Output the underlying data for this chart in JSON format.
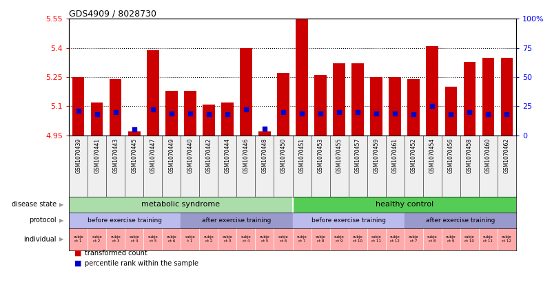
{
  "title": "GDS4909 / 8028730",
  "samples": [
    "GSM1070439",
    "GSM1070441",
    "GSM1070443",
    "GSM1070445",
    "GSM1070447",
    "GSM1070449",
    "GSM1070440",
    "GSM1070442",
    "GSM1070444",
    "GSM1070446",
    "GSM1070448",
    "GSM1070450",
    "GSM1070451",
    "GSM1070453",
    "GSM1070455",
    "GSM1070457",
    "GSM1070459",
    "GSM1070461",
    "GSM1070452",
    "GSM1070454",
    "GSM1070456",
    "GSM1070458",
    "GSM1070460",
    "GSM1070462"
  ],
  "transformed_count": [
    5.25,
    5.12,
    5.24,
    4.97,
    5.39,
    5.18,
    5.18,
    5.11,
    5.12,
    5.4,
    4.97,
    5.27,
    5.55,
    5.26,
    5.32,
    5.32,
    5.25,
    5.25,
    5.24,
    5.41,
    5.2,
    5.33,
    5.35,
    5.35
  ],
  "percentile_rank": [
    21,
    18,
    20,
    5,
    22,
    19,
    19,
    18,
    18,
    22,
    6,
    20,
    19,
    19,
    20,
    20,
    19,
    19,
    18,
    25,
    18,
    20,
    18,
    18
  ],
  "y_min": 4.95,
  "y_max": 5.55,
  "y_ticks": [
    4.95,
    5.1,
    5.25,
    5.4,
    5.55
  ],
  "y_tick_labels": [
    "4.95",
    "5.1",
    "5.25",
    "5.4",
    "5.55"
  ],
  "right_y_ticks": [
    0,
    25,
    50,
    75,
    100
  ],
  "right_y_labels": [
    "0",
    "25",
    "50",
    "75",
    "100%"
  ],
  "bar_color": "#cc0000",
  "dot_color": "#0000cc",
  "bar_width": 0.65,
  "disease_groups": [
    {
      "label": "metabolic syndrome",
      "start": 0,
      "end": 11,
      "color": "#aaddaa"
    },
    {
      "label": "healthy control",
      "start": 12,
      "end": 23,
      "color": "#55cc55"
    }
  ],
  "protocol_groups": [
    {
      "label": "before exercise training",
      "start": 0,
      "end": 5,
      "color": "#bbbbee"
    },
    {
      "label": "after exercise training",
      "start": 6,
      "end": 11,
      "color": "#9999cc"
    },
    {
      "label": "before exercise training",
      "start": 12,
      "end": 17,
      "color": "#bbbbee"
    },
    {
      "label": "after exercise training",
      "start": 18,
      "end": 23,
      "color": "#9999cc"
    }
  ],
  "individual_labels": [
    "subje\nct 1",
    "subje\nct 2",
    "subje\nct 3",
    "subje\nct 4",
    "subje\nct 5",
    "subje\nct 6",
    "subje\nt 1",
    "subje\nct 2",
    "subje\nct 3",
    "subje\nct 4",
    "subje\nct 5",
    "subje\nct 6",
    "subje\nct 7",
    "subje\nct 8",
    "subje\nct 9",
    "subje\nct 10",
    "subje\nct 11",
    "subje\nct 12",
    "subje\nct 7",
    "subje\nct 8",
    "subje\nct 9",
    "subje\nct 10",
    "subje\nct 11",
    "subje\nct 12"
  ],
  "individual_color": "#ffaaaa",
  "xticklabel_bg": "#dddddd",
  "row_label_color": "#888888"
}
